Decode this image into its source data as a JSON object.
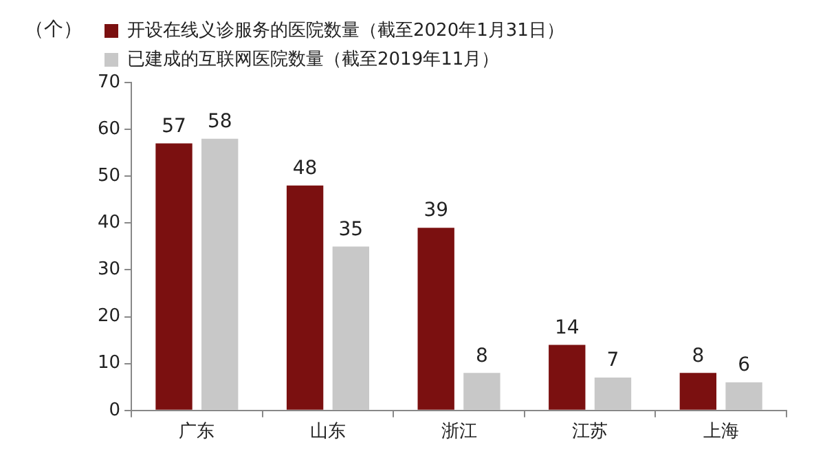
{
  "chart_data": {
    "type": "bar",
    "ylabel": "（个）",
    "categories": [
      "广东",
      "山东",
      "浙江",
      "江苏",
      "上海"
    ],
    "series": [
      {
        "name": "开设在线义诊服务的医院数量（截至2020年1月31日）",
        "color": "#7b1010",
        "values": [
          57,
          48,
          39,
          14,
          8
        ]
      },
      {
        "name": "已建成的互联网医院数量（截至2019年11月）",
        "color": "#c8c8c8",
        "values": [
          58,
          35,
          8,
          7,
          6
        ]
      }
    ],
    "ylim": [
      0,
      70
    ],
    "yticks": [
      0,
      10,
      20,
      30,
      40,
      50,
      60,
      70
    ],
    "grid": false,
    "legend": "top",
    "data_labels": true
  }
}
